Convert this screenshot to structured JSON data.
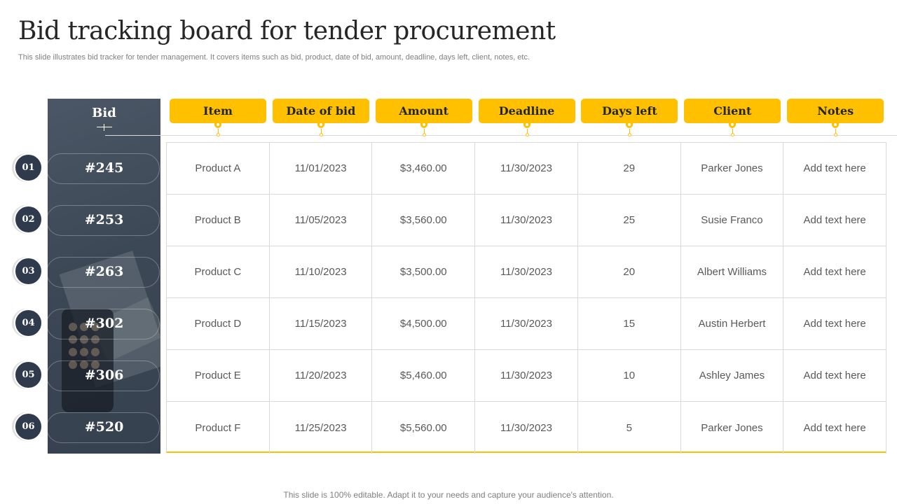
{
  "title": "Bid tracking board for tender procurement",
  "subtitle": "This slide illustrates bid tracker for tender management. It covers items such as bid, product, date of bid, amount, deadline, days left, client, notes, etc.",
  "bid_header": "Bid",
  "columns": [
    "Item",
    "Date of bid",
    "Amount",
    "Deadline",
    "Days left",
    "Client",
    "Notes"
  ],
  "rows": [
    {
      "index": "01",
      "bid": "#245",
      "cells": [
        "Product A",
        "11/01/2023",
        "$3,460.00",
        "11/30/2023",
        "29",
        "Parker Jones",
        "Add text here"
      ]
    },
    {
      "index": "02",
      "bid": "#253",
      "cells": [
        "Product B",
        "11/05/2023",
        "$3,560.00",
        "11/30/2023",
        "25",
        "Susie Franco",
        "Add text here"
      ]
    },
    {
      "index": "03",
      "bid": "#263",
      "cells": [
        "Product C",
        "11/10/2023",
        "$3,500.00",
        "11/30/2023",
        "20",
        "Albert Williams",
        "Add text here"
      ]
    },
    {
      "index": "04",
      "bid": "#302",
      "cells": [
        "Product D",
        "11/15/2023",
        "$4,500.00",
        "11/30/2023",
        "15",
        "Austin Herbert",
        "Add text here"
      ]
    },
    {
      "index": "05",
      "bid": "#306",
      "cells": [
        "Product E",
        "11/20/2023",
        "$5,460.00",
        "11/30/2023",
        "10",
        "Ashley James",
        "Add text here"
      ]
    },
    {
      "index": "06",
      "bid": "#520",
      "cells": [
        "Product F",
        "11/25/2023",
        "$5,560.00",
        "11/30/2023",
        "5",
        "Parker Jones",
        "Add text here"
      ]
    }
  ],
  "footer": "This slide is 100% editable. Adapt it to your needs and capture your audience's attention.",
  "colors": {
    "accent": "#ffc000",
    "panel": "#3d4856",
    "circle": "#2f3b4c",
    "grid": "#d9d9d9"
  }
}
